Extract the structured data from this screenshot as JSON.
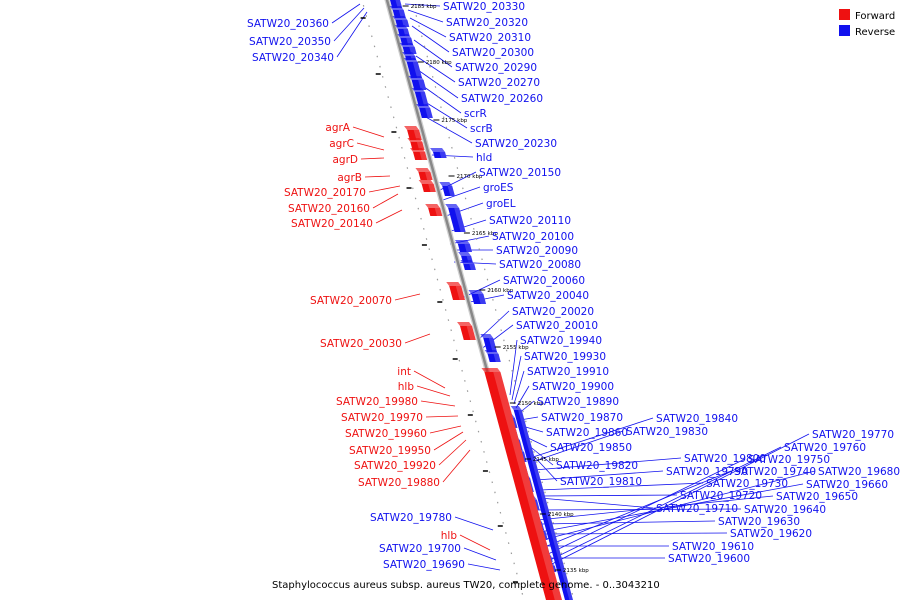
{
  "caption": "Staphylococcus aureus subsp. aureus TW20, complete genome. - 0..3043210",
  "colors": {
    "forward": "#ee1111",
    "reverse": "#1111ee",
    "backbone": "#888888"
  },
  "legend": [
    {
      "label": "Forward",
      "color": "#ee1111"
    },
    {
      "label": "Reverse",
      "color": "#1111ee"
    }
  ],
  "ticks": [
    "2185 kbp",
    "2180 kbp",
    "2175 kbp",
    "2170 kbp",
    "2165 kbp",
    "2160 kbp",
    "2155 kbp",
    "2150 kbp",
    "2145 kbp",
    "2140 kbp",
    "2135 kbp"
  ],
  "forward_genes": [
    "agrA",
    "agrC",
    "agrD",
    "agrB",
    "SATW20_20170",
    "SATW20_20160",
    "SATW20_20140",
    "SATW20_20070",
    "SATW20_20030",
    "int",
    "hlb",
    "SATW20_19980",
    "SATW20_19970",
    "SATW20_19960",
    "SATW20_19950",
    "SATW20_19920",
    "SATW20_19880",
    "hlb"
  ],
  "reverse_genes_left": [
    "SATW20_20360",
    "SATW20_20350",
    "SATW20_20340",
    "SATW20_19780",
    "SATW20_19700",
    "SATW20_19690"
  ],
  "reverse_genes_right": [
    "SATW20_20330",
    "SATW20_20320",
    "SATW20_20310",
    "SATW20_20300",
    "SATW20_20290",
    "SATW20_20270",
    "SATW20_20260",
    "scrR",
    "scrB",
    "SATW20_20230",
    "hld",
    "SATW20_20150",
    "groES",
    "groEL",
    "SATW20_20110",
    "SATW20_20100",
    "SATW20_20090",
    "SATW20_20080",
    "SATW20_20060",
    "SATW20_20040",
    "SATW20_20020",
    "SATW20_20010",
    "SATW20_19940",
    "SATW20_19930",
    "SATW20_19910",
    "SATW20_19900",
    "SATW20_19890",
    "SATW20_19870",
    "SATW20_19860",
    "SATW20_19850",
    "SATW20_19820",
    "SATW20_19810",
    "SATW20_19840",
    "SATW20_19830",
    "SATW20_19800",
    "SATW20_19790",
    "SATW20_19710",
    "SATW20_19720",
    "SATW20_19730",
    "SATW20_19630",
    "SATW20_19620",
    "SATW20_19610",
    "SATW20_19600",
    "SATW20_19770",
    "SATW20_19760",
    "SATW20_19750",
    "SATW20_19740",
    "SATW20_19680",
    "SATW20_19660",
    "SATW20_19650",
    "SATW20_19640"
  ]
}
